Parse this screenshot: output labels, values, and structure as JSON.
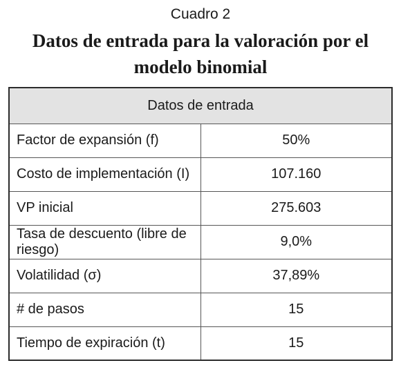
{
  "caption": "Cuadro 2",
  "title": "Datos de entrada para la valoración por el modelo binomial",
  "table": {
    "header": "Datos de entrada",
    "rows": [
      {
        "label": "Factor de expansión (f)",
        "value": "50%"
      },
      {
        "label": "Costo de implementación (I)",
        "value": "107.160"
      },
      {
        "label": "VP inicial",
        "value": "275.603"
      },
      {
        "label": "Tasa de descuento (libre de riesgo)",
        "value": "9,0%"
      },
      {
        "label": "Volatilidad (σ)",
        "value": "37,89%"
      },
      {
        "label": "# de pasos",
        "value": "15"
      },
      {
        "label": "Tiempo de expiración (t)",
        "value": "15"
      }
    ]
  }
}
